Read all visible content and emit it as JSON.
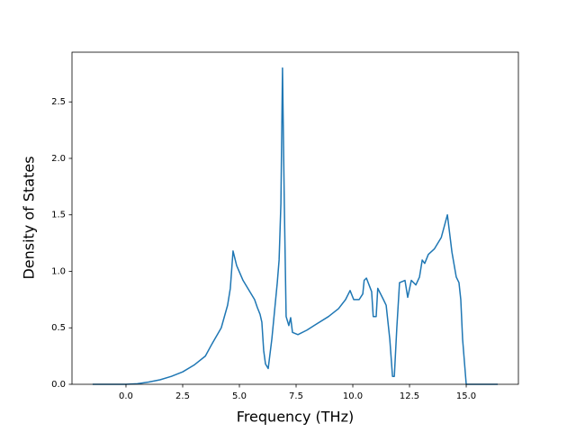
{
  "chart_data": {
    "type": "line",
    "x_label": "Frequency (THz)",
    "y_label": "Density of States",
    "xlim": [
      -2.38,
      17.3
    ],
    "ylim": [
      0,
      2.94
    ],
    "xticks": [
      {
        "value": 0,
        "label": "0.0"
      },
      2.5,
      {
        "value": 5,
        "label": "5.0"
      },
      7.5,
      {
        "value": 10,
        "label": "10.0"
      },
      12.5,
      {
        "value": 15,
        "label": "15.0"
      }
    ],
    "yticks": [
      {
        "value": 0,
        "label": "0.0"
      },
      0.5,
      {
        "value": 1,
        "label": "1.0"
      },
      1.5,
      {
        "value": 2,
        "label": "2.0"
      },
      2.5
    ],
    "series": [
      {
        "color": "#1f77b4",
        "x": [
          -1.47,
          0,
          0.5,
          1.0,
          1.5,
          2.0,
          2.5,
          3.0,
          3.5,
          3.77,
          4.2,
          4.48,
          4.6,
          4.72,
          4.88,
          5.16,
          5.67,
          5.79,
          5.91,
          5.99,
          6.07,
          6.15,
          6.27,
          6.43,
          6.55,
          6.67,
          6.75,
          6.83,
          6.9,
          6.98,
          7.06,
          7.18,
          7.26,
          7.34,
          7.58,
          7.98,
          8.29,
          8.93,
          9.37,
          9.68,
          9.88,
          10.04,
          10.28,
          10.44,
          10.5,
          10.6,
          10.83,
          10.9,
          11.03,
          11.1,
          11.35,
          11.47,
          11.63,
          11.75,
          11.83,
          11.94,
          12.06,
          12.3,
          12.42,
          12.58,
          12.78,
          12.94,
          13.06,
          13.17,
          13.33,
          13.6,
          13.9,
          14.17,
          14.37,
          14.56,
          14.68,
          14.76,
          14.84,
          15.0,
          16.39
        ],
        "values": [
          0,
          0,
          0.005,
          0.02,
          0.04,
          0.07,
          0.11,
          0.17,
          0.25,
          0.35,
          0.5,
          0.7,
          0.85,
          1.18,
          1.05,
          0.92,
          0.75,
          0.68,
          0.62,
          0.55,
          0.3,
          0.18,
          0.14,
          0.4,
          0.65,
          0.9,
          1.1,
          1.6,
          2.8,
          1.6,
          0.6,
          0.52,
          0.59,
          0.46,
          0.44,
          0.48,
          0.52,
          0.6,
          0.67,
          0.75,
          0.83,
          0.75,
          0.75,
          0.8,
          0.92,
          0.94,
          0.82,
          0.6,
          0.6,
          0.85,
          0.75,
          0.7,
          0.4,
          0.07,
          0.07,
          0.5,
          0.9,
          0.92,
          0.77,
          0.92,
          0.88,
          0.95,
          1.1,
          1.07,
          1.15,
          1.2,
          1.3,
          1.5,
          1.17,
          0.95,
          0.9,
          0.75,
          0.4,
          0,
          0
        ]
      }
    ]
  }
}
